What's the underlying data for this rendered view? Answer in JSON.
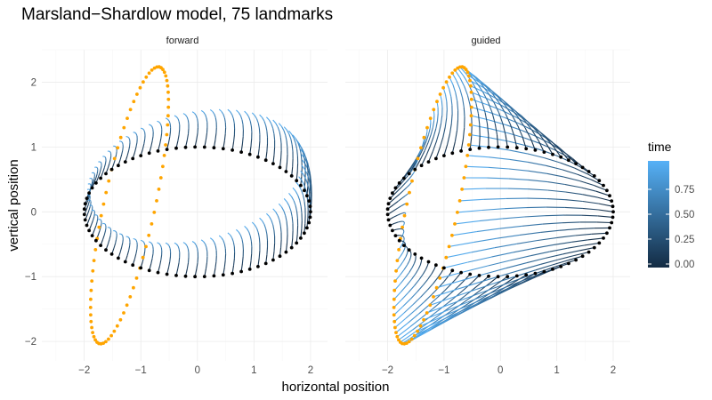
{
  "chart_data": {
    "type": "line",
    "title": "Marsland−Shardlow model, 75 landmarks",
    "xlabel": "horizontal position",
    "ylabel": "vertical position",
    "xlim": [
      -2.75,
      2.3
    ],
    "ylim": [
      -2.3,
      2.5
    ],
    "x_ticks": [
      -2,
      -1,
      0,
      1,
      2
    ],
    "x_tick_labels": [
      "−2",
      "−1",
      "0",
      "1",
      "2"
    ],
    "y_ticks": [
      -2,
      -1,
      0,
      1,
      2
    ],
    "y_tick_labels": [
      "−2",
      "−1",
      "0",
      "1",
      "2"
    ],
    "grid": true,
    "landmarks": 75,
    "start_shape": {
      "type": "ellipse",
      "center": [
        0,
        0
      ],
      "semi_axes": [
        2.0,
        1.0
      ],
      "color": "#000000"
    },
    "target_shape": {
      "type": "tilted ellipse",
      "center": [
        -1.2,
        0.1
      ],
      "semi_axes": [
        0.45,
        2.2
      ],
      "tilt_deg": 14,
      "color": "#FFA500"
    },
    "panels": [
      {
        "name": "forward",
        "strip_label": "forward"
      },
      {
        "name": "guided",
        "strip_label": "guided"
      }
    ],
    "legend": {
      "title": "time",
      "position": "right",
      "range": [
        0,
        1
      ],
      "ticks": [
        0.0,
        0.25,
        0.5,
        0.75
      ],
      "tick_labels": [
        "0.00",
        "0.25",
        "0.50",
        "0.75"
      ],
      "colors": [
        "#132B43",
        "#56B1F7"
      ]
    }
  }
}
